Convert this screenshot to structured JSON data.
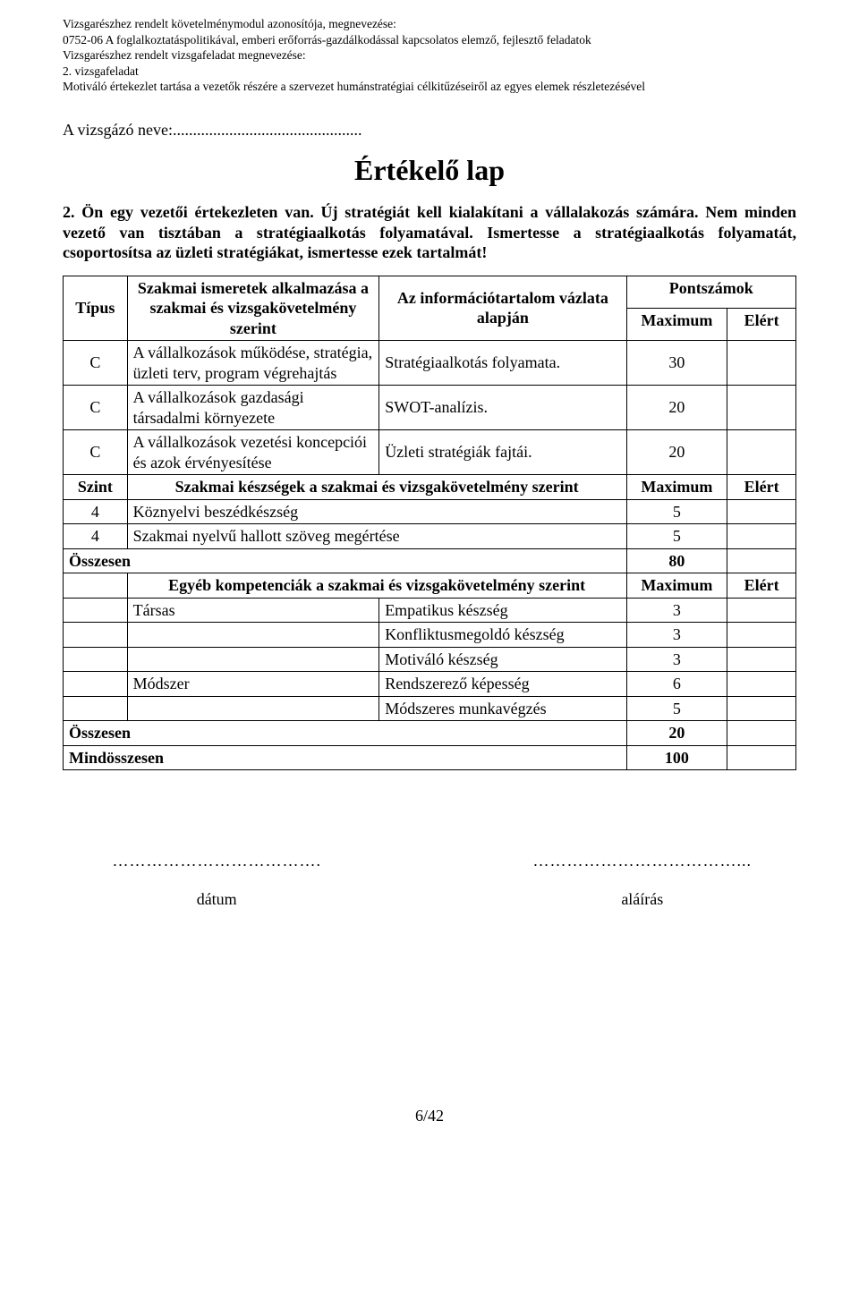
{
  "header": {
    "line1": "Vizsgarészhez rendelt követelménymodul azonosítója, megnevezése:",
    "line2": "0752-06 A foglalkoztatáspolitikával, emberi erőforrás-gazdálkodással kapcsolatos elemző, fejlesztő feladatok",
    "line3": "Vizsgarészhez rendelt vizsgafeladat megnevezése:",
    "line4": "2. vizsgafeladat",
    "line5": "Motiváló értekezlet tartása a vezetők részére a szervezet humánstratégiai célkitűzéseiről az egyes elemek részletezésével"
  },
  "name_line": "A vizsgázó neve:...............................................",
  "title": "Értékelő lap",
  "intro_bold": "2. Ön egy vezetői értekezleten van. Új stratégiát kell kialakítani a vállalakozás számára. Nem minden vezető van tisztában a stratégiaalkotás folyamatával. Ismertesse a stratégiaalkotás folyamatát, csoportosítsa az üzleti stratégiákat, ismertesse ezek tartalmát!",
  "table": {
    "head": {
      "tipus": "Típus",
      "szakmai": "Szakmai ismeretek alkalmazása a szakmai és vizsgakövetelmény szerint",
      "info": "Az információtartalom vázlata alapján",
      "pont": "Pontszámok",
      "max": "Maximum",
      "elert": "Elért"
    },
    "rows_c": [
      {
        "t": "C",
        "b": "A vállalkozások működése, stratégia, üzleti terv, program végrehajtás",
        "c": "Stratégiaalkotás folyamata.",
        "d": "30"
      },
      {
        "t": "C",
        "b": "A vállalkozások gazdasági társadalmi környezete",
        "c": "SWOT-analízis.",
        "d": "20"
      },
      {
        "t": "C",
        "b": "A vállalkozások vezetési koncepciói és azok érvényesítése",
        "c": "Üzleti stratégiák fajtái.",
        "d": "20"
      }
    ],
    "szint_head": {
      "a": "Szint",
      "b": "Szakmai készségek a szakmai és vizsgakövetelmény szerint",
      "d": "Maximum",
      "e": "Elért"
    },
    "szint_rows": [
      {
        "a": "4",
        "b": "Köznyelvi beszédkészség",
        "d": "5"
      },
      {
        "a": "4",
        "b": "Szakmai nyelvű hallott szöveg megértése",
        "d": "5"
      }
    ],
    "osszesen1": {
      "label": "Összesen",
      "val": "80"
    },
    "egyeb_head": {
      "b": "Egyéb kompetenciák a szakmai és vizsgakövetelmény szerint",
      "d": "Maximum",
      "e": "Elért"
    },
    "egyeb_rows": [
      {
        "b": "Társas",
        "c": "Empatikus készség",
        "d": "3"
      },
      {
        "b": "",
        "c": "Konfliktusmegoldó készség",
        "d": "3"
      },
      {
        "b": "",
        "c": "Motiváló készség",
        "d": "3"
      },
      {
        "b": "Módszer",
        "c": "Rendszerező képesség",
        "d": "6"
      },
      {
        "b": "",
        "c": "Módszeres munkavégzés",
        "d": "5"
      }
    ],
    "osszesen2": {
      "label": "Összesen",
      "val": "20"
    },
    "mind": {
      "label": "Mindösszesen",
      "val": "100"
    }
  },
  "sig": {
    "dots_left": "……………………………….",
    "dots_right": "………………………………...",
    "date": "dátum",
    "sign": "aláírás"
  },
  "page": "6/42"
}
